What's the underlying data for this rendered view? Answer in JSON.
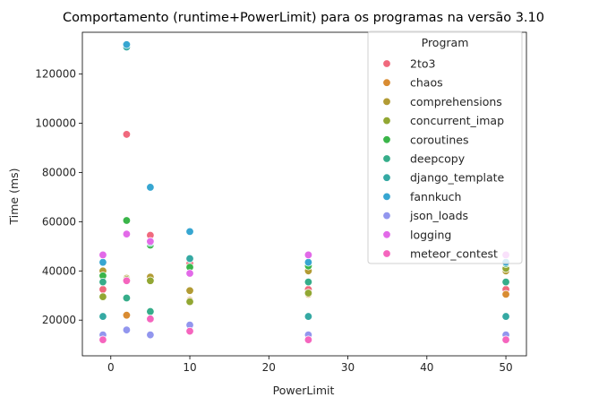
{
  "chart_data": {
    "type": "scatter",
    "title": "Comportamento (runtime+PowerLimit) para os programas na versão 3.10",
    "xlabel": "PowerLimit",
    "ylabel": "Time (ms)",
    "xlim": [
      -3.6,
      52.6
    ],
    "ylim": [
      5500,
      137000
    ],
    "xticks": [
      0,
      10,
      20,
      30,
      40,
      50
    ],
    "yticks": [
      20000,
      40000,
      60000,
      80000,
      100000,
      120000
    ],
    "ytick_labels": [
      "20000",
      "40000",
      "60000",
      "80000",
      "100000",
      "120000"
    ],
    "grid": false,
    "legend_title": "Program",
    "legend_position": "top-right",
    "series": [
      {
        "name": "2to3",
        "color": "#f0697d",
        "x": [
          -1,
          2,
          5,
          10,
          25,
          50
        ],
        "y": [
          32500,
          95500,
          54500,
          43000,
          32500,
          32500
        ]
      },
      {
        "name": "chaos",
        "color": "#d98c32",
        "x": [
          -1,
          2,
          5,
          10,
          25,
          50
        ],
        "y": [
          29500,
          22000,
          23500,
          28000,
          30500,
          30500
        ]
      },
      {
        "name": "comprehensions",
        "color": "#b29b34",
        "x": [
          -1,
          2,
          5,
          10,
          25,
          50
        ],
        "y": [
          40000,
          37000,
          37500,
          32000,
          40000,
          40000
        ]
      },
      {
        "name": "concurrent_imap",
        "color": "#92a733",
        "x": [
          -1,
          2,
          5,
          10,
          25,
          50
        ],
        "y": [
          29500,
          36500,
          36000,
          27500,
          31000,
          41000
        ]
      },
      {
        "name": "coroutines",
        "color": "#3ab549",
        "x": [
          -1,
          2,
          5,
          10,
          25,
          50
        ],
        "y": [
          38000,
          60500,
          50500,
          41500,
          42000,
          43000
        ]
      },
      {
        "name": "deepcopy",
        "color": "#36ad8a",
        "x": [
          -1,
          2,
          5,
          10,
          25,
          50
        ],
        "y": [
          35500,
          29000,
          23500,
          45000,
          35500,
          35500
        ]
      },
      {
        "name": "django_template",
        "color": "#35a9a3",
        "x": [
          -1,
          2,
          5,
          10,
          25,
          50
        ],
        "y": [
          21500,
          131000,
          51500,
          45000,
          21500,
          21500
        ]
      },
      {
        "name": "fannkuch",
        "color": "#37a6d1",
        "x": [
          -1,
          2,
          5,
          10,
          25,
          50
        ],
        "y": [
          43500,
          132000,
          74000,
          56000,
          43500,
          43500
        ]
      },
      {
        "name": "json_loads",
        "color": "#9296ee",
        "x": [
          -1,
          2,
          5,
          10,
          25,
          50
        ],
        "y": [
          14000,
          16000,
          14000,
          18000,
          14000,
          14000
        ]
      },
      {
        "name": "logging",
        "color": "#e26ae8",
        "x": [
          -1,
          2,
          5,
          10,
          25,
          50
        ],
        "y": [
          46500,
          55000,
          52000,
          39000,
          46500,
          46500
        ]
      },
      {
        "name": "meteor_contest",
        "color": "#f565be",
        "x": [
          -1,
          2,
          5,
          10,
          25,
          50
        ],
        "y": [
          12000,
          36000,
          20500,
          15500,
          12000,
          12000
        ]
      }
    ]
  }
}
